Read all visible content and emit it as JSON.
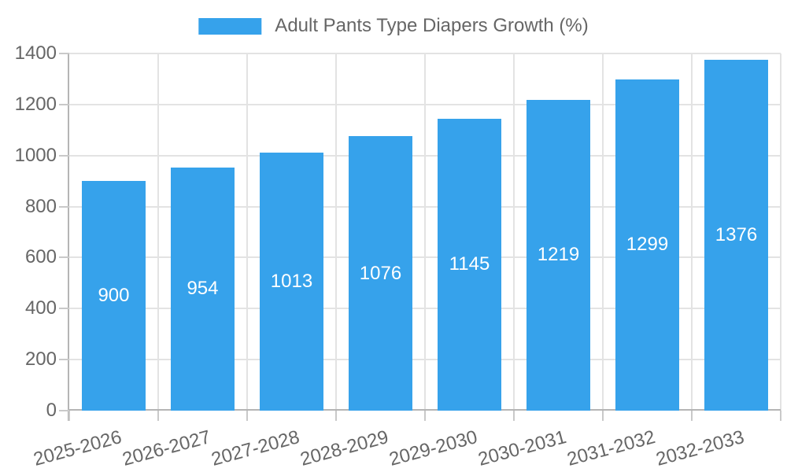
{
  "chart_data": {
    "type": "bar",
    "legend": {
      "position": "top",
      "label": "Adult Pants Type Diapers Growth (%)"
    },
    "categories": [
      "2025-2026",
      "2026-2027",
      "2027-2028",
      "2028-2029",
      "2029-2030",
      "2030-2031",
      "2031-2032",
      "2032-2033"
    ],
    "values": [
      900,
      954,
      1013,
      1076,
      1145,
      1219,
      1299,
      1376
    ],
    "value_labels": [
      "900",
      "954",
      "1013",
      "1076",
      "1145",
      "1219",
      "1299",
      "1376"
    ],
    "ylabel": "",
    "xlabel": "",
    "ylim": [
      0,
      1400
    ],
    "ytick_step": 200,
    "grid": true,
    "x_label_rotation_deg": -15,
    "colors": {
      "bar": "#36A2EB",
      "axis_text": "#666666",
      "value_label": "#FFFFFF",
      "gridline": "#E3E3E3",
      "axis_line": "#B5B5B5",
      "tick": "#C9C9C9",
      "background": "#FFFFFF"
    }
  }
}
